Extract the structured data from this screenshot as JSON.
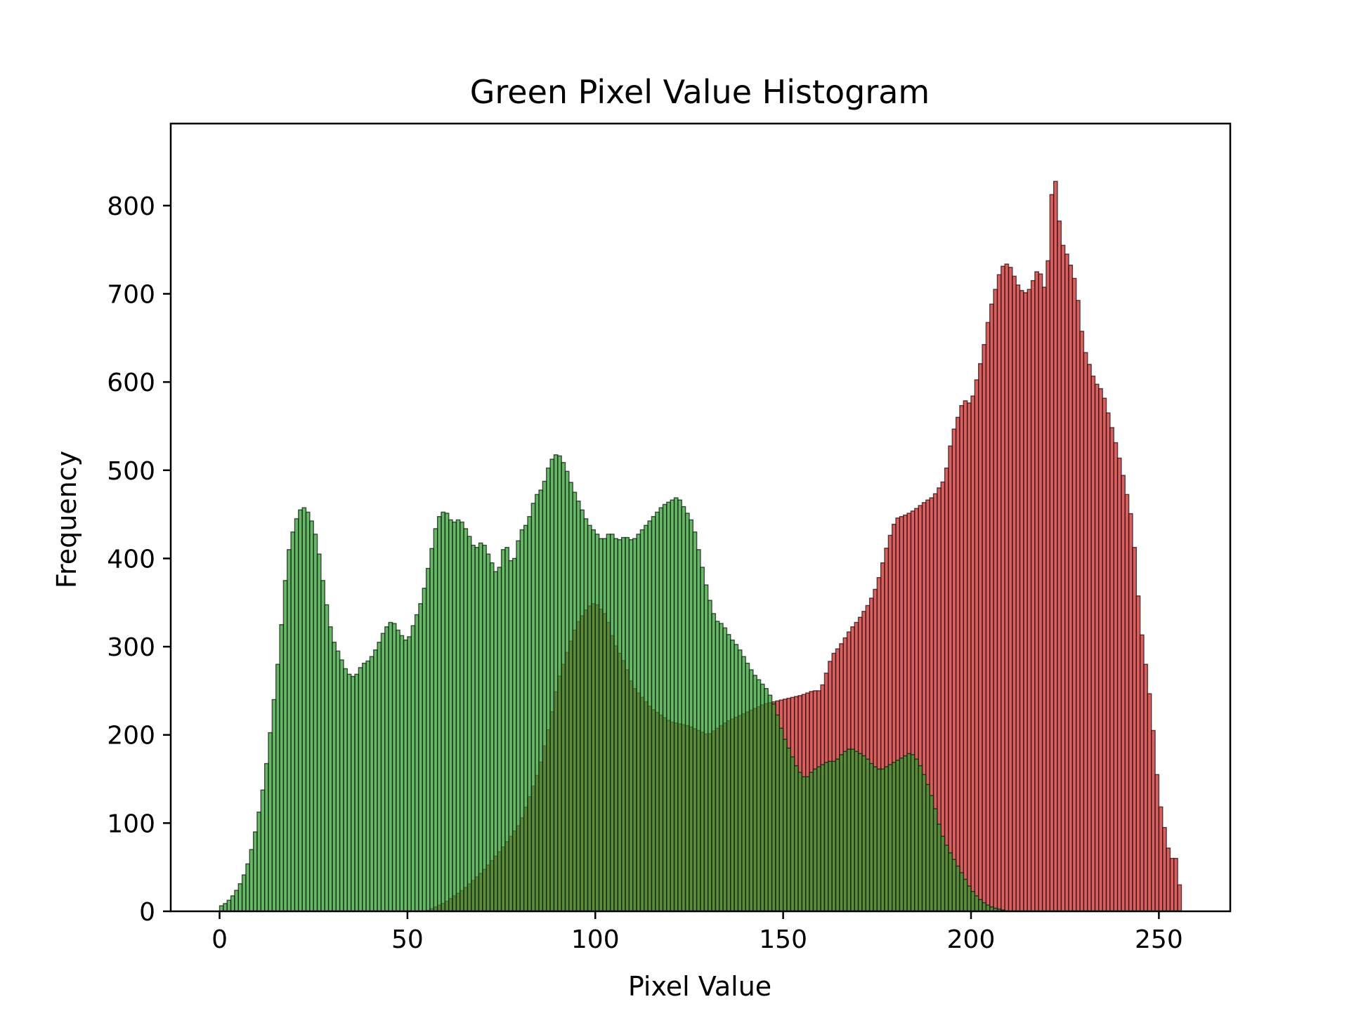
{
  "chart_data": {
    "type": "bar",
    "title": "Green Pixel Value Histogram",
    "xlabel": "Pixel Value",
    "ylabel": "Frequency",
    "xlim": [
      -13,
      269
    ],
    "ylim": [
      0,
      893
    ],
    "xticks": [
      0,
      50,
      100,
      150,
      200,
      250
    ],
    "yticks": [
      0,
      100,
      200,
      300,
      400,
      500,
      600,
      700,
      800
    ],
    "grid": false,
    "legend": "none",
    "bin_width": 1,
    "series": [
      {
        "color": "#d21e1e",
        "x": [
          55,
          60,
          65,
          70,
          75,
          80,
          85,
          88,
          90,
          93,
          95,
          98,
          100,
          103,
          105,
          108,
          110,
          115,
          120,
          125,
          130,
          135,
          140,
          145,
          150,
          155,
          158,
          160,
          163,
          165,
          168,
          170,
          173,
          175,
          178,
          180,
          183,
          185,
          188,
          190,
          193,
          195,
          198,
          200,
          203,
          205,
          208,
          210,
          213,
          215,
          218,
          220,
          222,
          224,
          226,
          228,
          230,
          233,
          235,
          238,
          240,
          243,
          245,
          248,
          250,
          253,
          255,
          256
        ],
        "values": [
          0,
          10,
          25,
          45,
          70,
          100,
          160,
          215,
          260,
          300,
          325,
          345,
          350,
          335,
          305,
          280,
          255,
          230,
          215,
          210,
          200,
          215,
          225,
          235,
          240,
          245,
          250,
          250,
          290,
          300,
          320,
          330,
          350,
          370,
          420,
          445,
          450,
          455,
          465,
          470,
          490,
          540,
          580,
          575,
          630,
          680,
          730,
          735,
          705,
          700,
          730,
          700,
          850,
          760,
          740,
          710,
          640,
          600,
          590,
          540,
          505,
          440,
          330,
          230,
          130,
          60,
          60,
          0
        ]
      },
      {
        "color": "#28a028",
        "x": [
          0,
          2,
          4,
          6,
          8,
          10,
          12,
          14,
          16,
          18,
          20,
          22,
          24,
          26,
          28,
          30,
          32,
          34,
          36,
          38,
          40,
          42,
          44,
          46,
          48,
          50,
          52,
          54,
          56,
          58,
          60,
          62,
          64,
          66,
          68,
          70,
          72,
          74,
          76,
          78,
          80,
          82,
          84,
          86,
          88,
          90,
          92,
          94,
          96,
          98,
          100,
          102,
          104,
          106,
          108,
          110,
          112,
          114,
          116,
          118,
          120,
          122,
          124,
          126,
          128,
          130,
          132,
          134,
          136,
          138,
          140,
          142,
          144,
          146,
          148,
          150,
          152,
          154,
          156,
          158,
          160,
          162,
          164,
          166,
          168,
          170,
          172,
          174,
          176,
          178,
          180,
          182,
          184,
          186,
          188,
          190,
          192,
          194,
          196,
          198,
          200,
          202,
          204,
          206,
          208,
          210,
          212,
          214,
          216,
          218,
          220,
          222,
          224,
          226,
          228,
          230,
          232,
          234
        ],
        "values": [
          5,
          10,
          20,
          35,
          60,
          100,
          150,
          220,
          300,
          400,
          440,
          460,
          450,
          420,
          360,
          310,
          290,
          270,
          265,
          280,
          285,
          300,
          320,
          330,
          315,
          305,
          330,
          355,
          400,
          445,
          455,
          440,
          445,
          430,
          410,
          420,
          400,
          380,
          420,
          390,
          430,
          440,
          470,
          480,
          510,
          520,
          505,
          480,
          460,
          440,
          430,
          420,
          430,
          420,
          425,
          420,
          430,
          440,
          450,
          460,
          465,
          470,
          455,
          440,
          400,
          360,
          330,
          325,
          310,
          300,
          285,
          270,
          260,
          250,
          230,
          200,
          180,
          160,
          150,
          160,
          165,
          170,
          170,
          180,
          185,
          180,
          175,
          165,
          160,
          165,
          170,
          175,
          180,
          170,
          150,
          125,
          90,
          70,
          55,
          40,
          25,
          15,
          8,
          4,
          2,
          0,
          0,
          0,
          0,
          0,
          0,
          0,
          0,
          0,
          0,
          0,
          0,
          0
        ]
      }
    ]
  }
}
